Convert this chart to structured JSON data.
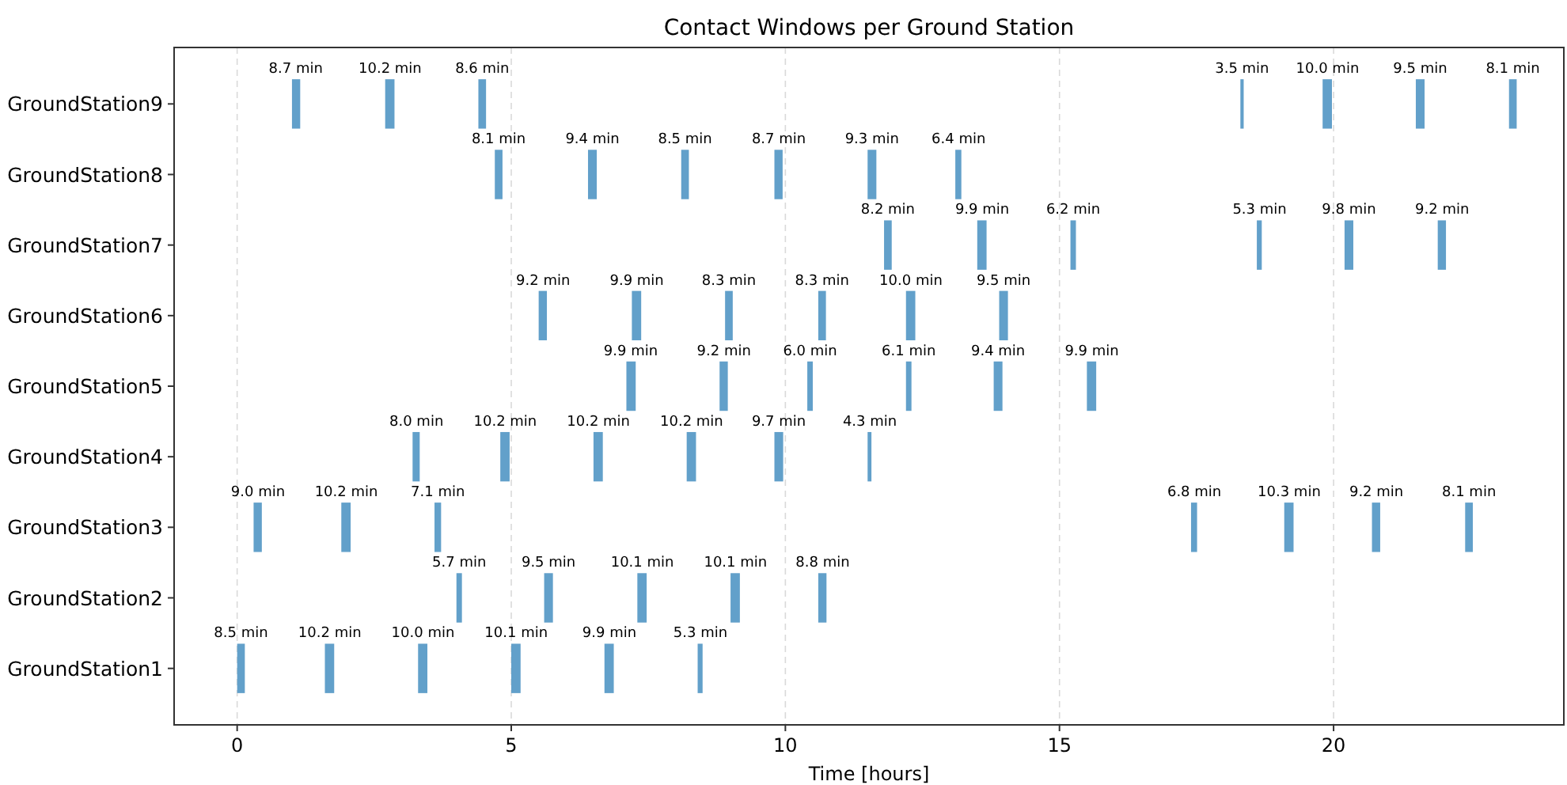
{
  "chart_data": {
    "type": "bar",
    "orientation": "horizontal",
    "title": "Contact Windows per Ground Station",
    "xlabel": "Time [hours]",
    "categories": [
      "GroundStation9",
      "GroundStation8",
      "GroundStation7",
      "GroundStation6",
      "GroundStation5",
      "GroundStation4",
      "GroundStation3",
      "GroundStation2",
      "GroundStation1"
    ],
    "xlim": [
      -1.15,
      24.2
    ],
    "xticks": [
      0,
      5,
      10,
      15,
      20
    ],
    "grid": "x",
    "series": [
      {
        "color": "#62a0ca",
        "base": [
          1.0,
          4.7,
          11.8,
          5.5,
          7.1,
          3.2,
          0.3,
          4.0,
          0
        ],
        "values": [
          0.15,
          0.14,
          0.14,
          0.15,
          0.17,
          0.13,
          0.15,
          0.1,
          0.14
        ]
      },
      {
        "color": "#62a0ca",
        "base": [
          2.7,
          6.4,
          13.5,
          7.2,
          8.8,
          4.8,
          1.9,
          5.6,
          1.6
        ],
        "values": [
          0.17,
          0.16,
          0.17,
          0.17,
          0.15,
          0.17,
          0.17,
          0.16,
          0.17
        ]
      },
      {
        "color": "#62a0ca",
        "base": [
          4.4,
          8.1,
          15.2,
          8.9,
          10.4,
          6.5,
          3.6,
          7.3,
          3.3
        ],
        "values": [
          0.14,
          0.14,
          0.1,
          0.14,
          0.1,
          0.17,
          0.12,
          0.17,
          0.17
        ]
      },
      {
        "color": "#62a0ca",
        "base": [
          18.3,
          9.8,
          18.6,
          10.6,
          12.2,
          8.2,
          17.4,
          9.0,
          5.0
        ],
        "values": [
          0.06,
          0.15,
          0.09,
          0.14,
          0.1,
          0.17,
          0.11,
          0.17,
          0.17
        ]
      },
      {
        "color": "#62a0ca",
        "base": [
          19.8,
          11.5,
          20.2,
          12.2,
          13.8,
          9.8,
          19.1,
          10.6,
          6.7
        ],
        "values": [
          0.17,
          0.16,
          0.16,
          0.17,
          0.16,
          0.16,
          0.17,
          0.15,
          0.17
        ]
      },
      {
        "color": "#62a0ca",
        "base": [
          21.5,
          13.1,
          21.9,
          13.9,
          15.5,
          11.5,
          20.7,
          null,
          8.4
        ],
        "values": [
          0.16,
          0.11,
          0.15,
          0.16,
          0.17,
          0.07,
          0.15,
          null,
          0.09
        ]
      },
      {
        "color": "#62a0ca",
        "base": [
          23.2,
          null,
          null,
          null,
          null,
          null,
          22.4,
          null,
          null
        ],
        "values": [
          0.14,
          null,
          null,
          null,
          null,
          null,
          0.14,
          null,
          null
        ]
      }
    ],
    "annotations": [
      {
        "text": "8.7 min",
        "x": 1.07,
        "y": "GroundStation9"
      },
      {
        "text": "10.2 min",
        "x": 2.79,
        "y": "GroundStation9"
      },
      {
        "text": "8.6 min",
        "x": 4.47,
        "y": "GroundStation9"
      },
      {
        "text": "3.5 min",
        "x": 18.33,
        "y": "GroundStation9"
      },
      {
        "text": "10.0 min",
        "x": 19.89,
        "y": "GroundStation9"
      },
      {
        "text": "9.5 min",
        "x": 21.58,
        "y": "GroundStation9"
      },
      {
        "text": "8.1 min",
        "x": 23.27,
        "y": "GroundStation9"
      },
      {
        "text": "8.1 min",
        "x": 4.77,
        "y": "GroundStation8"
      },
      {
        "text": "9.4 min",
        "x": 6.48,
        "y": "GroundStation8"
      },
      {
        "text": "8.5 min",
        "x": 8.17,
        "y": "GroundStation8"
      },
      {
        "text": "8.7 min",
        "x": 9.88,
        "y": "GroundStation8"
      },
      {
        "text": "9.3 min",
        "x": 11.58,
        "y": "GroundStation8"
      },
      {
        "text": "6.4 min",
        "x": 13.16,
        "y": "GroundStation8"
      },
      {
        "text": "8.2 min",
        "x": 11.87,
        "y": "GroundStation7"
      },
      {
        "text": "9.9 min",
        "x": 13.59,
        "y": "GroundStation7"
      },
      {
        "text": "6.2 min",
        "x": 15.25,
        "y": "GroundStation7"
      },
      {
        "text": "5.3 min",
        "x": 18.65,
        "y": "GroundStation7"
      },
      {
        "text": "9.8 min",
        "x": 20.28,
        "y": "GroundStation7"
      },
      {
        "text": "9.2 min",
        "x": 21.98,
        "y": "GroundStation7"
      },
      {
        "text": "9.2 min",
        "x": 5.58,
        "y": "GroundStation6"
      },
      {
        "text": "9.9 min",
        "x": 7.29,
        "y": "GroundStation6"
      },
      {
        "text": "8.3 min",
        "x": 8.97,
        "y": "GroundStation6"
      },
      {
        "text": "8.3 min",
        "x": 10.67,
        "y": "GroundStation6"
      },
      {
        "text": "10.0 min",
        "x": 12.29,
        "y": "GroundStation6"
      },
      {
        "text": "9.5 min",
        "x": 13.98,
        "y": "GroundStation6"
      },
      {
        "text": "9.9 min",
        "x": 7.18,
        "y": "GroundStation5"
      },
      {
        "text": "9.2 min",
        "x": 8.88,
        "y": "GroundStation5"
      },
      {
        "text": "6.0 min",
        "x": 10.45,
        "y": "GroundStation5"
      },
      {
        "text": "6.1 min",
        "x": 12.25,
        "y": "GroundStation5"
      },
      {
        "text": "9.4 min",
        "x": 13.88,
        "y": "GroundStation5"
      },
      {
        "text": "9.9 min",
        "x": 15.59,
        "y": "GroundStation5"
      },
      {
        "text": "8.0 min",
        "x": 3.27,
        "y": "GroundStation4"
      },
      {
        "text": "10.2 min",
        "x": 4.89,
        "y": "GroundStation4"
      },
      {
        "text": "10.2 min",
        "x": 6.59,
        "y": "GroundStation4"
      },
      {
        "text": "10.2 min",
        "x": 8.29,
        "y": "GroundStation4"
      },
      {
        "text": "9.7 min",
        "x": 9.88,
        "y": "GroundStation4"
      },
      {
        "text": "4.3 min",
        "x": 11.54,
        "y": "GroundStation4"
      },
      {
        "text": "9.0 min",
        "x": 0.38,
        "y": "GroundStation3"
      },
      {
        "text": "10.2 min",
        "x": 1.99,
        "y": "GroundStation3"
      },
      {
        "text": "7.1 min",
        "x": 3.66,
        "y": "GroundStation3"
      },
      {
        "text": "6.8 min",
        "x": 17.46,
        "y": "GroundStation3"
      },
      {
        "text": "10.3 min",
        "x": 19.19,
        "y": "GroundStation3"
      },
      {
        "text": "9.2 min",
        "x": 20.78,
        "y": "GroundStation3"
      },
      {
        "text": "8.1 min",
        "x": 22.47,
        "y": "GroundStation3"
      },
      {
        "text": "5.7 min",
        "x": 4.05,
        "y": "GroundStation2"
      },
      {
        "text": "9.5 min",
        "x": 5.68,
        "y": "GroundStation2"
      },
      {
        "text": "10.1 min",
        "x": 7.39,
        "y": "GroundStation2"
      },
      {
        "text": "10.1 min",
        "x": 9.09,
        "y": "GroundStation2"
      },
      {
        "text": "8.8 min",
        "x": 10.68,
        "y": "GroundStation2"
      },
      {
        "text": "8.5 min",
        "x": 0.07,
        "y": "GroundStation1"
      },
      {
        "text": "10.2 min",
        "x": 1.69,
        "y": "GroundStation1"
      },
      {
        "text": "10.0 min",
        "x": 3.39,
        "y": "GroundStation1"
      },
      {
        "text": "10.1 min",
        "x": 5.09,
        "y": "GroundStation1"
      },
      {
        "text": "9.9 min",
        "x": 6.79,
        "y": "GroundStation1"
      },
      {
        "text": "5.3 min",
        "x": 8.45,
        "y": "GroundStation1"
      }
    ]
  }
}
